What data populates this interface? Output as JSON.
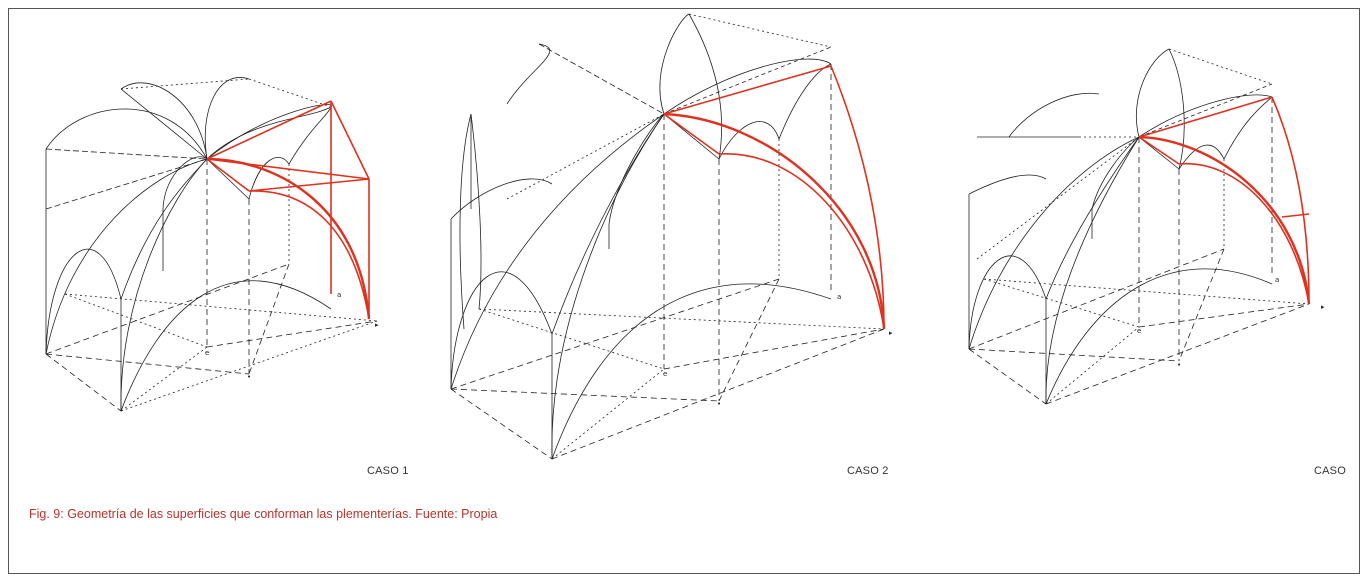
{
  "figure": {
    "case_labels": [
      "CASO 1",
      "CASO 2",
      "CASO"
    ],
    "caption": "Fig. 9: Geometría de las superficies que conforman las plementerías.  Fuente: Propia",
    "colors": {
      "line": "#222222",
      "highlight": "#e0301e",
      "caption": "#b5342b",
      "frame": "#555555"
    }
  }
}
